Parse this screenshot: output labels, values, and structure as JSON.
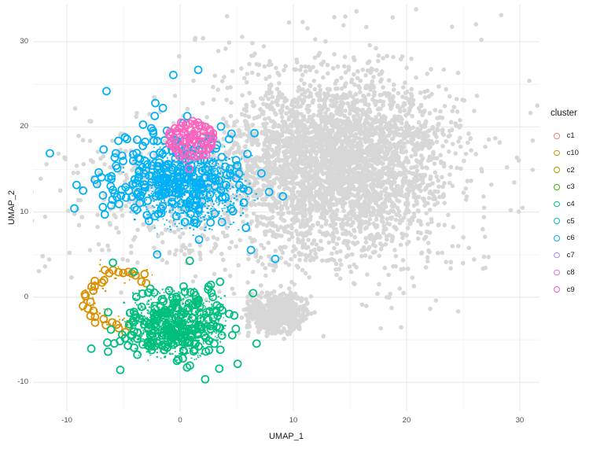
{
  "chart_data": {
    "type": "scatter",
    "title": "",
    "xlabel": "UMAP_1",
    "ylabel": "UMAP_2",
    "xlim": [
      -12.99,
      31.74
    ],
    "ylim": [
      -13.3,
      34.35
    ],
    "x_ticks": [
      -10,
      0,
      10,
      20,
      30
    ],
    "y_ticks": [
      -10,
      0,
      10,
      20,
      30
    ],
    "minor_x": [
      -5,
      5,
      15,
      25
    ],
    "minor_y": [
      -5,
      5,
      15,
      25
    ],
    "grid": "major+minor",
    "background_color": "#FFFFFF",
    "major_grid_color": "#EBEBEB",
    "minor_grid_color": "#F4F4F4",
    "tick_text_color": "#4D4D4D",
    "unselected_color": "#D7D7D7",
    "legend_title": "cluster",
    "legend_position": "right",
    "legend_items": [
      {
        "label": "c1",
        "color": "#F8766D"
      },
      {
        "label": "c10",
        "color": "#D89000"
      },
      {
        "label": "c2",
        "color": "#A3A500"
      },
      {
        "label": "c3",
        "color": "#39B600"
      },
      {
        "label": "c4",
        "color": "#00BF7D"
      },
      {
        "label": "c5",
        "color": "#00BFC4"
      },
      {
        "label": "c6",
        "color": "#00B0F6"
      },
      {
        "label": "c7",
        "color": "#9590FF"
      },
      {
        "label": "c8",
        "color": "#E76BF3"
      },
      {
        "label": "c9",
        "color": "#FF62BC"
      }
    ],
    "seed": 11,
    "marker_styles": {
      "dot_radius": 2.8,
      "open_circle_radius": 4.5,
      "open_circle_stroke": 1.75
    },
    "layers": [
      {
        "id": "unselected-main",
        "cluster": "unselected",
        "marker": "dot",
        "color": "#D7D7D7",
        "gen": {
          "type": "gauss",
          "n": 2800,
          "cx": 14.0,
          "cy": 16.0,
          "sx": 4.6,
          "sy": 5.0,
          "clamp": 2.6
        }
      },
      {
        "id": "unselected-halo",
        "cluster": "unselected",
        "marker": "dot",
        "color": "#D7D7D7",
        "gen": {
          "type": "gauss",
          "n": 850,
          "cx": 12.5,
          "cy": 14.5,
          "sx": 7.5,
          "sy": 7.5,
          "clamp": 2.6
        }
      },
      {
        "id": "unselected-blob2",
        "cluster": "unselected",
        "marker": "dot",
        "color": "#D7D7D7",
        "gen": {
          "type": "gauss",
          "n": 650,
          "cx": 8.6,
          "cy": -1.9,
          "sx": 1.3,
          "sy": 1.15,
          "clamp": 2.6
        }
      },
      {
        "id": "unselected-left",
        "cluster": "unselected",
        "marker": "dot",
        "color": "#D7D7D7",
        "gen": {
          "type": "gauss",
          "n": 300,
          "cx": 0.5,
          "cy": 13.0,
          "sx": 4.8,
          "sy": 4.6,
          "clamp": 2.4
        }
      },
      {
        "id": "unselected-farleft",
        "cluster": "unselected",
        "marker": "dot",
        "color": "#D7D7D7",
        "gen": {
          "type": "gauss",
          "n": 50,
          "cx": -6.0,
          "cy": 10.0,
          "sx": 3.5,
          "sy": 4.0,
          "clamp": 2.2
        }
      },
      {
        "id": "c6-cells",
        "cluster": "c6",
        "marker": "tiny",
        "color": "#00B0F6",
        "gen": {
          "type": "gauss",
          "n": 1350,
          "cx": 0.9,
          "cy": 13.0,
          "sx": 2.3,
          "sy": 2.2,
          "clamp": 2.6
        }
      },
      {
        "id": "c6-outline",
        "cluster": "c6",
        "marker": "open-circle",
        "color": "#00B0F6",
        "gen": {
          "type": "gauss",
          "n": 265,
          "cx": -0.9,
          "cy": 13.9,
          "sx": 3.5,
          "sy": 3.2,
          "clamp": 3.0
        },
        "extra": [
          [
            -0.6,
            26.1
          ],
          [
            1.6,
            26.7
          ],
          [
            -6.5,
            24.2
          ],
          [
            -11.5,
            16.9
          ],
          [
            8.4,
            4.5
          ]
        ]
      },
      {
        "id": "c10-cells",
        "cluster": "c10",
        "marker": "tiny",
        "color": "#D89000",
        "gen": {
          "type": "ring",
          "n": 70,
          "cx": -5.2,
          "cy": -0.2,
          "rx": 2.6,
          "ry": 2.9,
          "a0": 40,
          "a1": 290,
          "jitter": 0.22
        }
      },
      {
        "id": "c10-outline",
        "cluster": "c10",
        "marker": "open-circle",
        "color": "#D89000",
        "gen": {
          "type": "ring",
          "n": 33,
          "cx": -5.2,
          "cy": -0.3,
          "rx": 3.0,
          "ry": 3.3,
          "a0": 38,
          "a1": 285,
          "jitter": 0.09
        }
      },
      {
        "id": "c4-cells",
        "cluster": "c4",
        "marker": "tiny",
        "color": "#00BF7D",
        "gen": {
          "type": "gauss",
          "n": 1400,
          "cx": -0.5,
          "cy": -3.2,
          "sx": 1.85,
          "sy": 1.7,
          "clamp": 2.5
        }
      },
      {
        "id": "c4-outline",
        "cluster": "c4",
        "marker": "open-circle",
        "color": "#00BF7D",
        "gen": {
          "type": "gauss",
          "n": 205,
          "cx": -0.7,
          "cy": -3.6,
          "sx": 2.6,
          "sy": 2.5,
          "clamp": 3.2
        }
      },
      {
        "id": "c9-cells",
        "cluster": "c9",
        "marker": "tiny",
        "color": "#FF62BC",
        "gen": {
          "type": "gauss",
          "n": 450,
          "cx": 1.0,
          "cy": 18.6,
          "sx": 0.85,
          "sy": 0.8,
          "clamp": 1.8
        }
      },
      {
        "id": "c9-outline",
        "cluster": "c9",
        "marker": "open-circle",
        "color": "#FF62BC",
        "gen": {
          "type": "ring",
          "n": 46,
          "cx": 1.0,
          "cy": 18.5,
          "rx": 1.8,
          "ry": 1.95,
          "a0": 0,
          "a1": 360,
          "jitter": 0.1
        },
        "extra": [
          [
            0.8,
            15.1
          ]
        ]
      }
    ],
    "panel_rect": [
      42,
      6,
      686,
      522
    ]
  }
}
